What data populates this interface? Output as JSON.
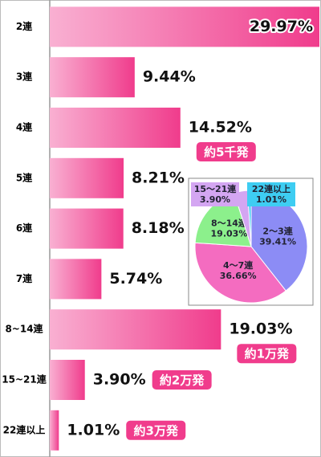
{
  "chart_data": [
    {
      "type": "hbar",
      "categories": [
        "2連",
        "3連",
        "4連",
        "5連",
        "6連",
        "7連",
        "8~14連",
        "15~21連",
        "22連以上"
      ],
      "values": [
        29.97,
        9.44,
        14.52,
        8.21,
        8.18,
        5.74,
        19.03,
        3.9,
        1.01
      ],
      "value_labels": [
        "29.97%",
        "9.44%",
        "14.52%",
        "8.21%",
        "8.18%",
        "5.74%",
        "19.03%",
        "3.90%",
        "1.01%"
      ],
      "annotations": [
        null,
        null,
        "約5千発",
        null,
        null,
        null,
        "約1万発",
        "約2万発",
        "約3万発"
      ],
      "color": "#f03c8c"
    },
    {
      "type": "pie",
      "categories": [
        "2〜3連",
        "4〜7連",
        "8〜14連",
        "15〜21連",
        "22連以上"
      ],
      "values": [
        39.41,
        36.66,
        19.03,
        3.9,
        1.01
      ],
      "value_labels": [
        "39.41%",
        "36.66%",
        "19.03%",
        "3.90%",
        "1.01%"
      ],
      "colors": [
        "#8c8cf5",
        "#f46cc0",
        "#8cf08c",
        "#d4a6f2",
        "#3ecdf2"
      ]
    }
  ]
}
